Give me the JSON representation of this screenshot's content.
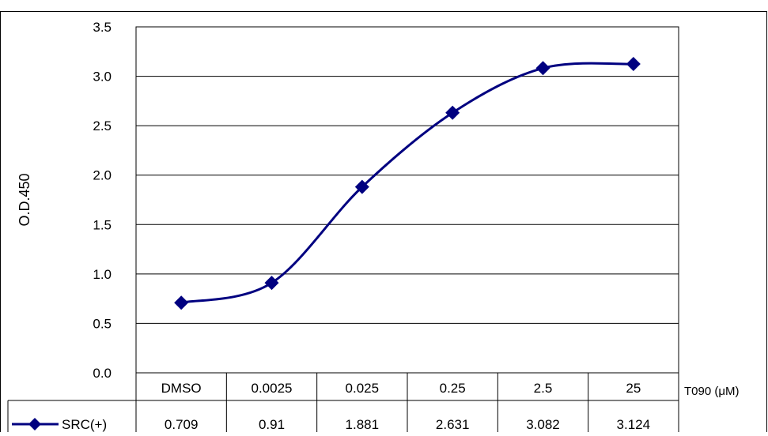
{
  "chart_data": {
    "type": "line",
    "title": "",
    "xlabel": "T090 (μM)",
    "ylabel": "O.D.450",
    "categories": [
      "DMSO",
      "0.0025",
      "0.025",
      "0.25",
      "2.5",
      "25"
    ],
    "ylim": [
      0,
      3.5
    ],
    "yticks": [
      "0.0",
      "0.5",
      "1.0",
      "1.5",
      "2.0",
      "2.5",
      "3.0",
      "3.5"
    ],
    "grid": true,
    "legend": "data-table-row",
    "series": [
      {
        "name": "SRC(+)",
        "values": [
          0.709,
          0.91,
          1.881,
          2.631,
          3.082,
          3.124
        ],
        "labels": [
          "0.709",
          "0.91",
          "1.881",
          "2.631",
          "3.082",
          "3.124"
        ],
        "color": "#000080",
        "marker": "diamond"
      }
    ]
  }
}
